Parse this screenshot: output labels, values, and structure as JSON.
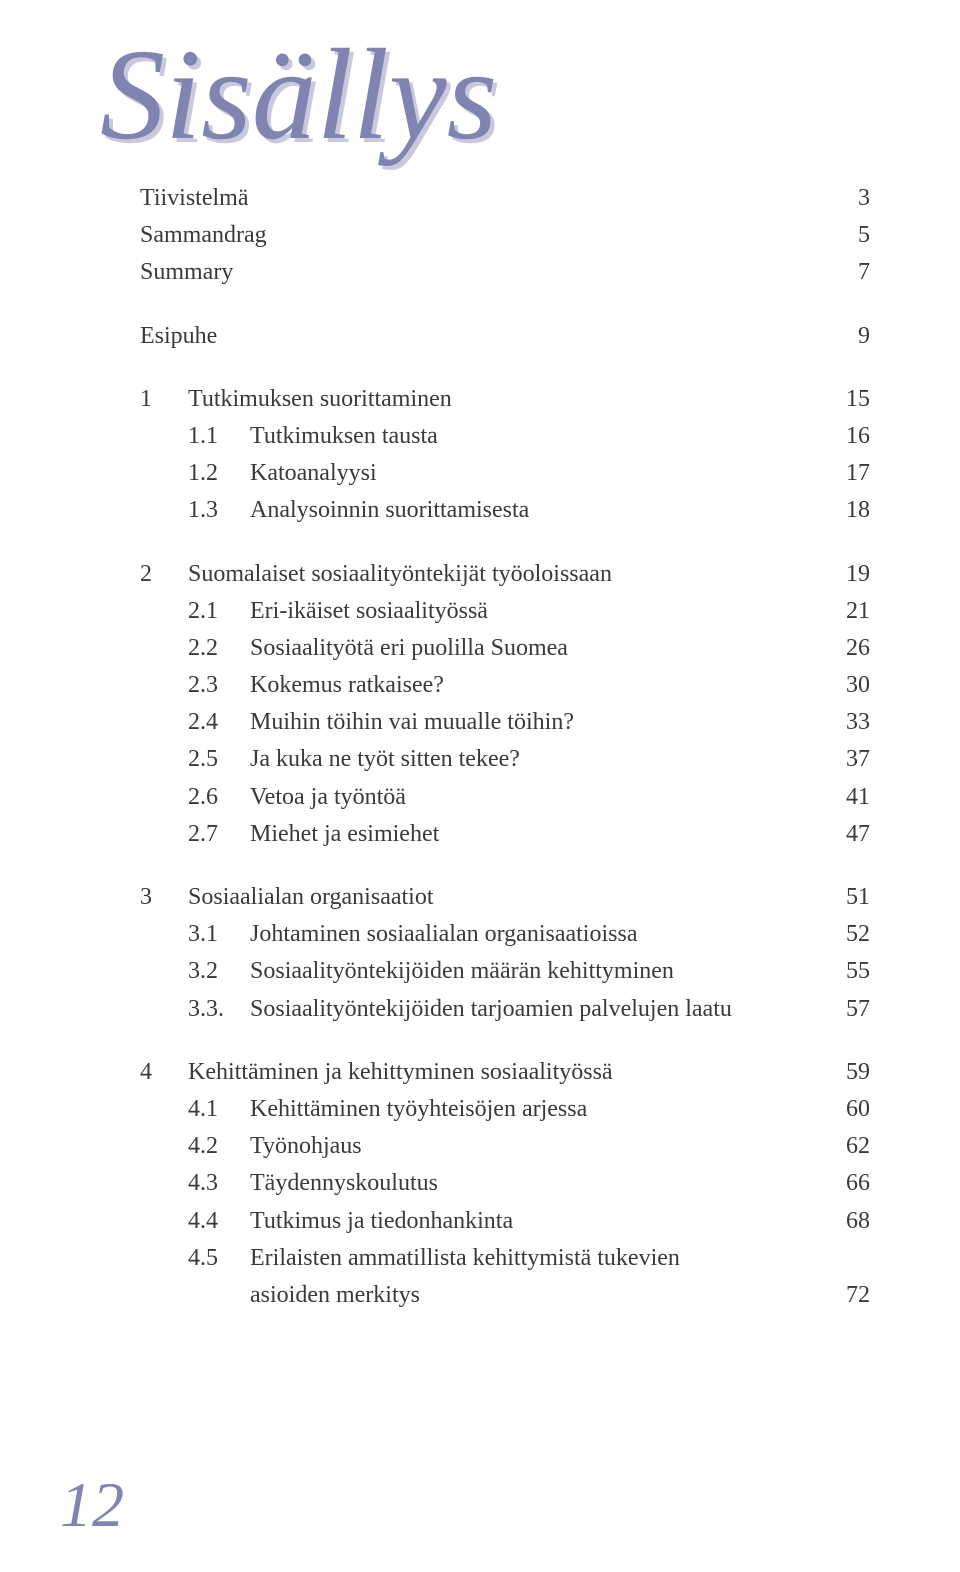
{
  "title": "Sisällys",
  "title_color": "#8184b1",
  "title_shadow": "#c8c9dc",
  "front": [
    {
      "label": "Tiivistelmä",
      "page": "3"
    },
    {
      "label": "Sammandrag",
      "page": "5"
    },
    {
      "label": "Summary",
      "page": "7"
    }
  ],
  "esipuhe": {
    "label": "Esipuhe",
    "page": "9"
  },
  "chapters": [
    {
      "num": "1",
      "label": "Tutkimuksen suorittaminen",
      "page": "15",
      "subs": [
        {
          "num": "1.1",
          "label": "Tutkimuksen tausta",
          "page": "16"
        },
        {
          "num": "1.2",
          "label": "Katoanalyysi",
          "page": "17"
        },
        {
          "num": "1.3",
          "label": "Analysoinnin suorittamisesta",
          "page": "18"
        }
      ]
    },
    {
      "num": "2",
      "label": "Suomalaiset sosiaalityöntekijät työoloissaan",
      "page": "19",
      "subs": [
        {
          "num": "2.1",
          "label": "Eri-ikäiset sosiaalityössä",
          "page": "21"
        },
        {
          "num": "2.2",
          "label": "Sosiaalityötä eri puolilla Suomea",
          "page": "26"
        },
        {
          "num": "2.3",
          "label": "Kokemus ratkaisee?",
          "page": "30"
        },
        {
          "num": "2.4",
          "label": "Muihin töihin vai muualle töihin?",
          "page": "33"
        },
        {
          "num": "2.5",
          "label": "Ja kuka ne työt sitten tekee?",
          "page": "37"
        },
        {
          "num": "2.6",
          "label": "Vetoa ja työntöä",
          "page": "41"
        },
        {
          "num": "2.7",
          "label": "Miehet ja esimiehet",
          "page": "47"
        }
      ]
    },
    {
      "num": "3",
      "label": "Sosiaalialan organisaatiot",
      "page": "51",
      "subs": [
        {
          "num": "3.1",
          "label": "Johtaminen sosiaalialan organisaatioissa",
          "page": "52"
        },
        {
          "num": "3.2",
          "label": "Sosiaalityöntekijöiden määrän kehittyminen",
          "page": "55"
        },
        {
          "num": "3.3.",
          "label": "Sosiaalityöntekijöiden tarjoamien palvelujen laatu",
          "page": "57"
        }
      ]
    },
    {
      "num": "4",
      "label": "Kehittäminen ja kehittyminen sosiaalityössä",
      "page": "59",
      "subs": [
        {
          "num": "4.1",
          "label": "Kehittäminen työyhteisöjen arjessa",
          "page": "60"
        },
        {
          "num": "4.2",
          "label": "Työnohjaus",
          "page": "62"
        },
        {
          "num": "4.3",
          "label": "Täydennyskoulutus",
          "page": "66"
        },
        {
          "num": "4.4",
          "label": "Tutkimus ja tiedonhankinta",
          "page": "68"
        },
        {
          "num": "4.5",
          "label": "Erilaisten ammatillista kehittymistä tukevien",
          "cont": "asioiden merkitys",
          "page": "72"
        }
      ]
    }
  ],
  "page_number": "12"
}
